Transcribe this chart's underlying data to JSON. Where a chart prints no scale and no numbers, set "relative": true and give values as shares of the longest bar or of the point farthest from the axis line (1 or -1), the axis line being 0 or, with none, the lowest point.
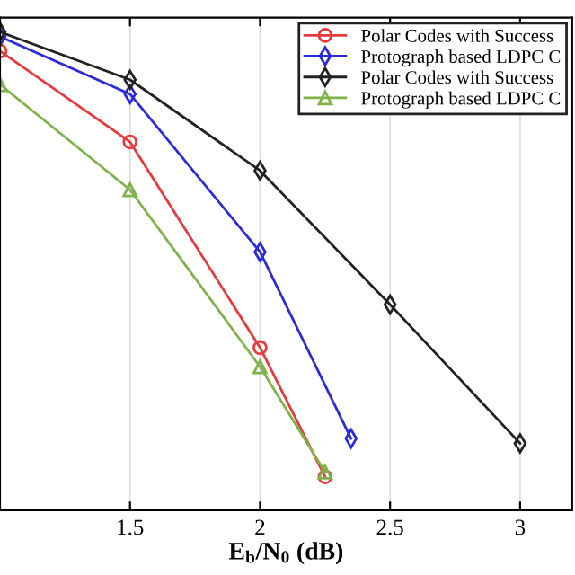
{
  "chart_data": {
    "type": "line",
    "xlabel": "E$_{b}$/N$_{0}$ (dB)",
    "relative": true,
    "xlim": [
      1.0,
      3.2
    ],
    "xticks": [
      1.5,
      2,
      2.5,
      3
    ],
    "grid": "x",
    "legend": "top right",
    "line_style": "solid",
    "series": [
      {
        "name": "Polar Codes with Success",
        "color": "#e8393c",
        "marker": "circle",
        "x": [
          1,
          1.5,
          2,
          2.25
        ],
        "values": [
          0.96,
          0.77,
          0.34,
          0.07
        ]
      },
      {
        "name": "Protograph based LDPC C",
        "color": "#2b2bd9",
        "marker": "diamond",
        "x": [
          1,
          1.5,
          2,
          2.35
        ],
        "values": [
          0.99,
          0.87,
          0.54,
          0.15
        ]
      },
      {
        "name": "Polar Codes with Success",
        "color": "#222222",
        "marker": "diamond",
        "x": [
          1,
          1.5,
          2,
          2.5,
          3
        ],
        "values": [
          1.0,
          0.9,
          0.71,
          0.43,
          0.14
        ]
      },
      {
        "name": "Protograph based LDPC C",
        "color": "#7fb24a",
        "marker": "triangle",
        "x": [
          1,
          1.5,
          2,
          2.25
        ],
        "values": [
          0.89,
          0.67,
          0.3,
          0.08
        ]
      }
    ]
  }
}
